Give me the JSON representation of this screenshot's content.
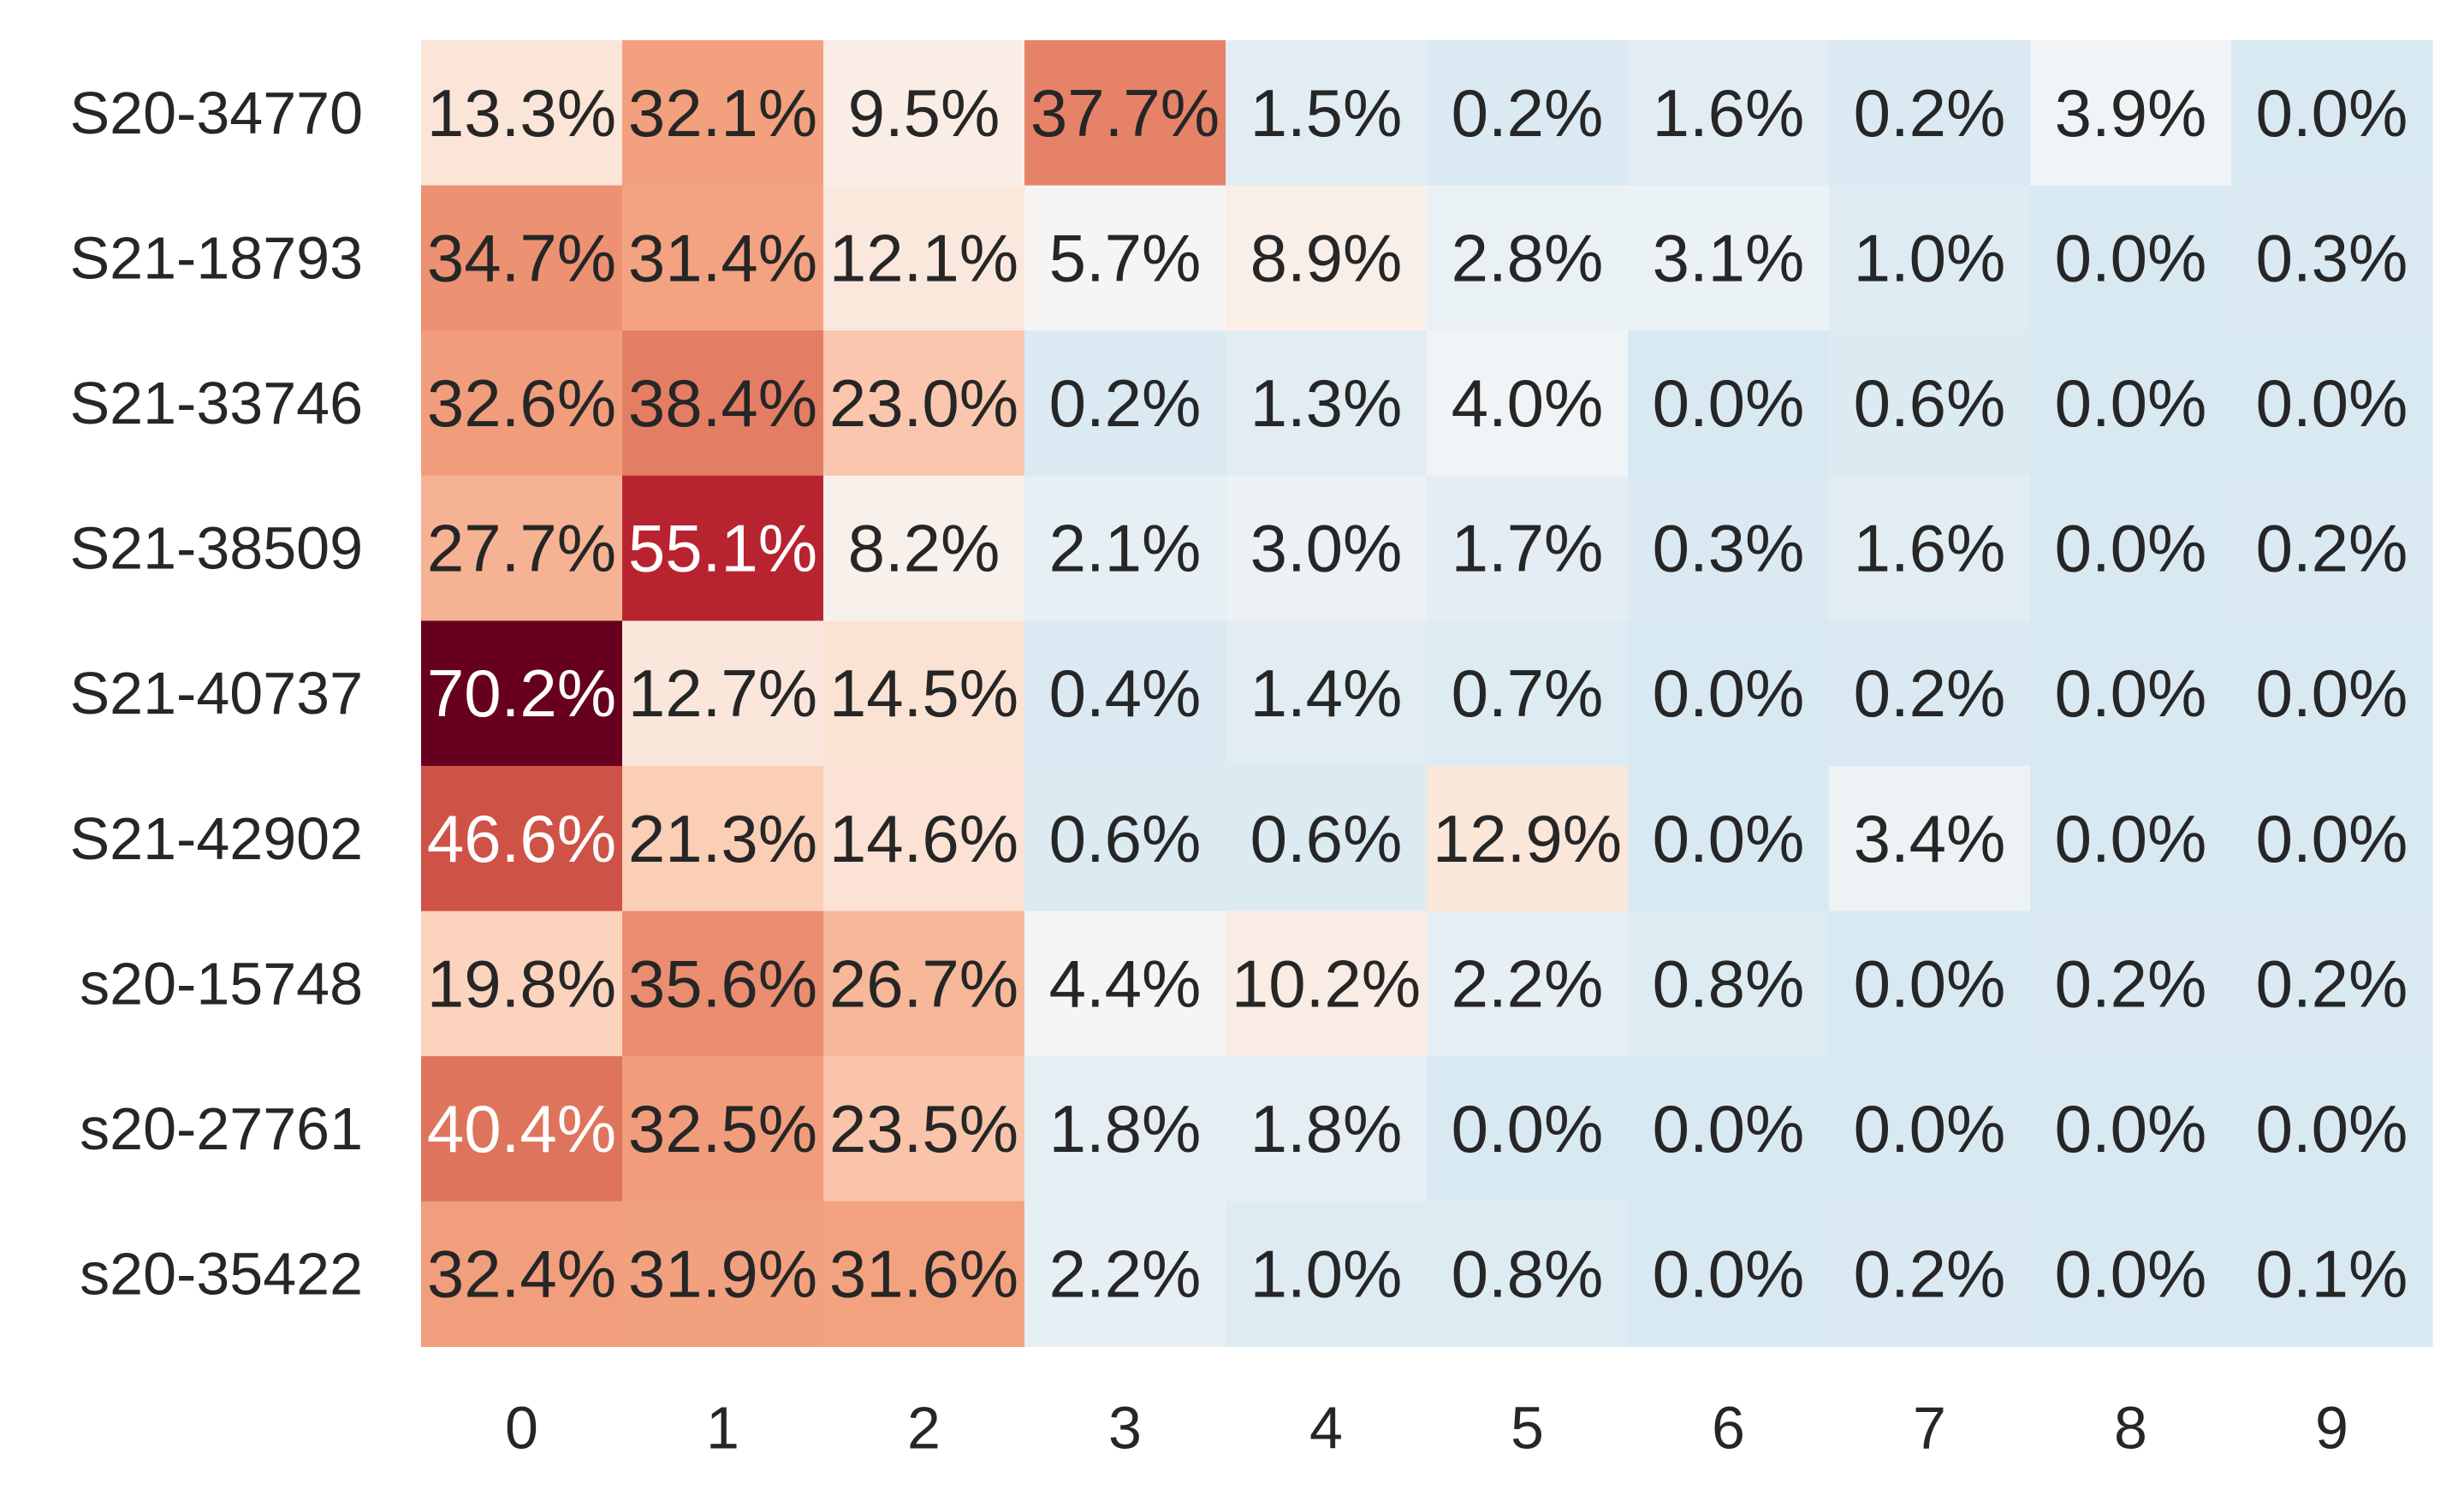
{
  "chart_data": {
    "type": "heatmap",
    "title": "",
    "xlabel": "",
    "ylabel": "",
    "x_categories": [
      "0",
      "1",
      "2",
      "3",
      "4",
      "5",
      "6",
      "7",
      "8",
      "9"
    ],
    "y_categories": [
      "S20-34770",
      "S21-18793",
      "S21-33746",
      "S21-38509",
      "S21-40737",
      "S21-42902",
      "s20-15748",
      "s20-27761",
      "s20-35422"
    ],
    "values": [
      [
        13.3,
        32.1,
        9.5,
        37.7,
        1.5,
        0.2,
        1.6,
        0.2,
        3.9,
        0.0
      ],
      [
        34.7,
        31.4,
        12.1,
        5.7,
        8.9,
        2.8,
        3.1,
        1.0,
        0.0,
        0.3
      ],
      [
        32.6,
        38.4,
        23.0,
        0.2,
        1.3,
        4.0,
        0.0,
        0.6,
        0.0,
        0.0
      ],
      [
        27.7,
        55.1,
        8.2,
        2.1,
        3.0,
        1.7,
        0.3,
        1.6,
        0.0,
        0.2
      ],
      [
        70.2,
        12.7,
        14.5,
        0.4,
        1.4,
        0.7,
        0.0,
        0.2,
        0.0,
        0.0
      ],
      [
        46.6,
        21.3,
        14.6,
        0.6,
        0.6,
        12.9,
        0.0,
        3.4,
        0.0,
        0.0
      ],
      [
        19.8,
        35.6,
        26.7,
        4.4,
        10.2,
        2.2,
        0.8,
        0.0,
        0.2,
        0.2
      ],
      [
        40.4,
        32.5,
        23.5,
        1.8,
        1.8,
        0.0,
        0.0,
        0.0,
        0.0,
        0.0
      ],
      [
        32.4,
        31.9,
        31.6,
        2.2,
        1.0,
        0.8,
        0.0,
        0.2,
        0.0,
        0.1
      ]
    ],
    "cell_labels": [
      [
        "13.3%",
        "32.1%",
        "9.5%",
        "37.7%",
        "1.5%",
        "0.2%",
        "1.6%",
        "0.2%",
        "3.9%",
        "0.0%"
      ],
      [
        "34.7%",
        "31.4%",
        "12.1%",
        "5.7%",
        "8.9%",
        "2.8%",
        "3.1%",
        "1.0%",
        "0.0%",
        "0.3%"
      ],
      [
        "32.6%",
        "38.4%",
        "23.0%",
        "0.2%",
        "1.3%",
        "4.0%",
        "0.0%",
        "0.6%",
        "0.0%",
        "0.0%"
      ],
      [
        "27.7%",
        "55.1%",
        "8.2%",
        "2.1%",
        "3.0%",
        "1.7%",
        "0.3%",
        "1.6%",
        "0.0%",
        "0.2%"
      ],
      [
        "70.2%",
        "12.7%",
        "14.5%",
        "0.4%",
        "1.4%",
        "0.7%",
        "0.0%",
        "0.2%",
        "0.0%",
        "0.0%"
      ],
      [
        "46.6%",
        "21.3%",
        "14.6%",
        "0.6%",
        "0.6%",
        "12.9%",
        "0.0%",
        "3.4%",
        "0.0%",
        "0.0%"
      ],
      [
        "19.8%",
        "35.6%",
        "26.7%",
        "4.4%",
        "10.2%",
        "2.2%",
        "0.8%",
        "0.0%",
        "0.2%",
        "0.2%"
      ],
      [
        "40.4%",
        "32.5%",
        "23.5%",
        "1.8%",
        "1.8%",
        "0.0%",
        "0.0%",
        "0.0%",
        "0.0%",
        "0.0%"
      ],
      [
        "32.4%",
        "31.9%",
        "31.6%",
        "2.2%",
        "1.0%",
        "0.8%",
        "0.0%",
        "0.2%",
        "0.0%",
        "0.1%"
      ]
    ],
    "value_range": [
      0,
      70.2
    ],
    "colormap": "RdBu_r",
    "grid": false,
    "legend": "none"
  }
}
